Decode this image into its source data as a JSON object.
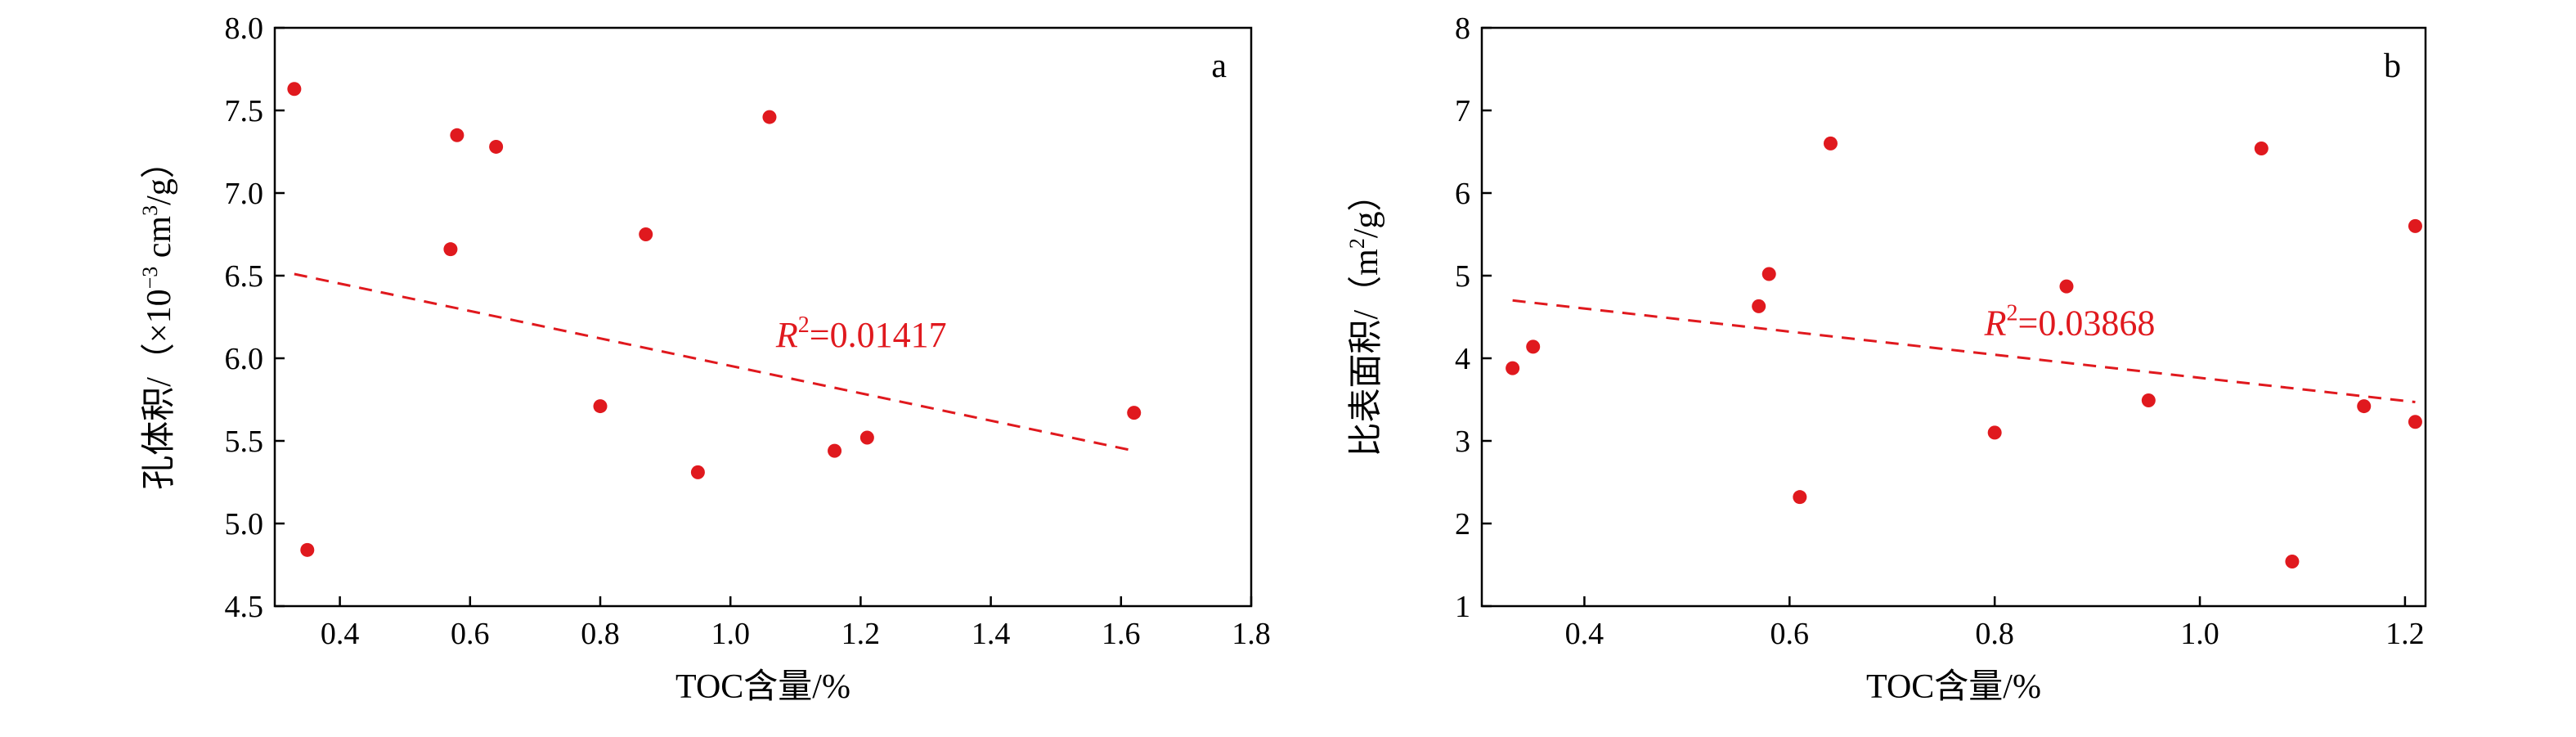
{
  "chart_data": [
    {
      "type": "scatter",
      "panel_label": "a",
      "xlabel": "TOC含量/%",
      "ylabel_main": "孔体积/（×10",
      "ylabel_exp": "−3",
      "ylabel_unit": " cm",
      "ylabel_unit_exp": "3",
      "ylabel_tail": "/g）",
      "xlim": [
        0.3,
        1.8
      ],
      "ylim": [
        4.5,
        8.0
      ],
      "xticks": [
        0.4,
        0.6,
        0.8,
        1.0,
        1.2,
        1.4,
        1.6,
        1.8
      ],
      "xtick_labels": [
        "0.4",
        "0.6",
        "0.8",
        "1.0",
        "1.2",
        "1.4",
        "1.6",
        "1.8"
      ],
      "yticks": [
        4.5,
        5.0,
        5.5,
        6.0,
        6.5,
        7.0,
        7.5,
        8.0
      ],
      "ytick_labels": [
        "4.5",
        "5.0",
        "5.5",
        "6.0",
        "6.5",
        "7.0",
        "7.5",
        "8.0"
      ],
      "points": [
        {
          "x": 0.33,
          "y": 7.63
        },
        {
          "x": 0.35,
          "y": 4.84
        },
        {
          "x": 0.57,
          "y": 6.66
        },
        {
          "x": 0.58,
          "y": 7.35
        },
        {
          "x": 0.64,
          "y": 7.28
        },
        {
          "x": 0.8,
          "y": 5.71
        },
        {
          "x": 0.87,
          "y": 6.75
        },
        {
          "x": 0.95,
          "y": 5.31
        },
        {
          "x": 1.06,
          "y": 7.46
        },
        {
          "x": 1.16,
          "y": 5.44
        },
        {
          "x": 1.21,
          "y": 5.52
        },
        {
          "x": 1.62,
          "y": 5.67
        }
      ],
      "trendline": {
        "x": [
          0.33,
          1.62
        ],
        "y": [
          6.51,
          5.44
        ]
      },
      "r2_symbol": "R",
      "r2_exp": "2",
      "r2_value": "=0.01417",
      "r2_pos": {
        "x": 1.07,
        "y": 6.07
      },
      "color": "#e0191e",
      "grid": false,
      "legend": "none"
    },
    {
      "type": "scatter",
      "panel_label": "b",
      "xlabel": "TOC含量/%",
      "ylabel_main": "比表面积/（m",
      "ylabel_exp": "2",
      "ylabel_unit": "",
      "ylabel_unit_exp": "",
      "ylabel_tail": "/g）",
      "xlim": [
        0.3,
        1.22
      ],
      "ylim": [
        1,
        8
      ],
      "xticks": [
        0.4,
        0.6,
        0.8,
        1.0,
        1.2
      ],
      "xtick_labels": [
        "0.4",
        "0.6",
        "0.8",
        "1.0",
        "1.2"
      ],
      "yticks": [
        1,
        2,
        3,
        4,
        5,
        6,
        7,
        8
      ],
      "ytick_labels": [
        "1",
        "2",
        "3",
        "4",
        "5",
        "6",
        "7",
        "8"
      ],
      "points": [
        {
          "x": 0.33,
          "y": 3.88
        },
        {
          "x": 0.35,
          "y": 4.14
        },
        {
          "x": 0.57,
          "y": 4.63
        },
        {
          "x": 0.58,
          "y": 5.02
        },
        {
          "x": 0.61,
          "y": 2.32
        },
        {
          "x": 0.64,
          "y": 6.6
        },
        {
          "x": 0.8,
          "y": 3.1
        },
        {
          "x": 0.87,
          "y": 4.87
        },
        {
          "x": 0.95,
          "y": 3.49
        },
        {
          "x": 1.06,
          "y": 6.54
        },
        {
          "x": 1.09,
          "y": 1.54
        },
        {
          "x": 1.16,
          "y": 3.42
        },
        {
          "x": 1.21,
          "y": 5.6
        },
        {
          "x": 1.21,
          "y": 3.23
        }
      ],
      "trendline": {
        "x": [
          0.33,
          1.21
        ],
        "y": [
          4.7,
          3.47
        ]
      },
      "r2_symbol": "R",
      "r2_exp": "2",
      "r2_value": "=0.03868",
      "r2_pos": {
        "x": 0.79,
        "y": 4.28
      },
      "color": "#e0191e",
      "grid": false,
      "legend": "none"
    }
  ]
}
